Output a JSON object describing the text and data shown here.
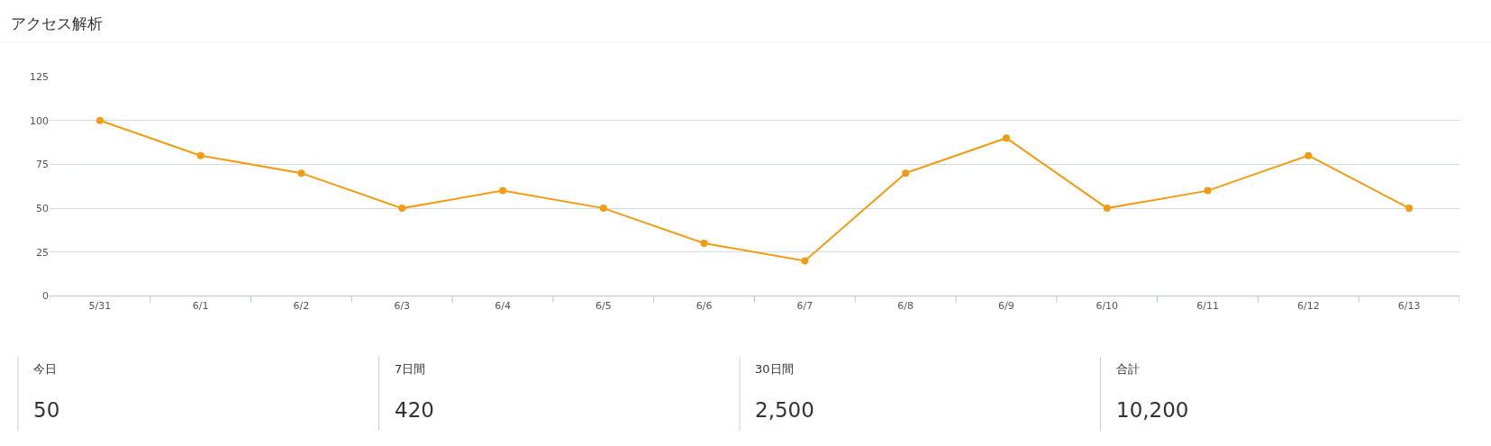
{
  "chart_data": [
    {
      "type": "line",
      "title": "アクセス解析",
      "categories": [
        "5/31",
        "6/1",
        "6/2",
        "6/3",
        "6/4",
        "6/5",
        "6/6",
        "6/7",
        "6/8",
        "6/9",
        "6/10",
        "6/11",
        "6/12",
        "6/13"
      ],
      "series": [
        {
          "color": "#f39c12",
          "values": [
            100,
            80,
            70,
            50,
            60,
            50,
            30,
            20,
            70,
            90,
            50,
            60,
            80,
            50
          ]
        }
      ],
      "ylim": [
        0,
        125
      ],
      "yticks": [
        0,
        25,
        50,
        75,
        100,
        125
      ],
      "grid": "y",
      "marker": "circle",
      "line_style": "solid"
    },
    {
      "type": "other",
      "categories": [
        "今日",
        "7日間",
        "30日間",
        "合計"
      ],
      "value_labels": [
        "50",
        "420",
        "2,500",
        "10,200"
      ]
    }
  ]
}
